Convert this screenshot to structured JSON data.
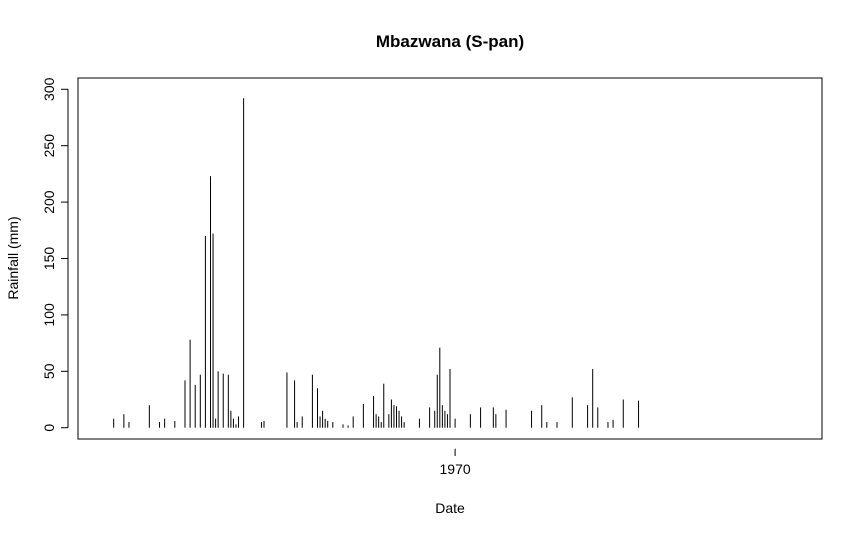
{
  "chart_data": {
    "type": "line",
    "title": "Mbazwana (S-pan)",
    "xlabel": "Date",
    "ylabel": "Rainfall (mm)",
    "ylim": [
      -10,
      310
    ],
    "y_ticks": [
      0,
      50,
      100,
      150,
      200,
      250,
      300
    ],
    "x_ticks": [
      {
        "value": 1970,
        "label": "1970"
      }
    ],
    "xlim": [
      1962.6,
      1977.2
    ],
    "grid": false,
    "legend": "none",
    "line_color": "#000000",
    "series": [
      {
        "x": [
          1963.3,
          1963.5,
          1963.6,
          1964.0,
          1964.2,
          1964.3,
          1964.5,
          1964.7,
          1964.8,
          1964.9,
          1965.0,
          1965.1,
          1965.2,
          1965.25,
          1965.3,
          1965.35,
          1965.45,
          1965.55,
          1965.6,
          1965.65,
          1965.7,
          1965.75,
          1965.85,
          1966.2,
          1966.25,
          1966.7,
          1966.85,
          1966.9,
          1967.0,
          1967.2,
          1967.3,
          1967.35,
          1967.4,
          1967.45,
          1967.5,
          1967.6,
          1967.8,
          1967.9,
          1968.0,
          1968.2,
          1968.4,
          1968.45,
          1968.5,
          1968.55,
          1968.6,
          1968.7,
          1968.75,
          1968.8,
          1968.85,
          1968.9,
          1968.95,
          1969.0,
          1969.3,
          1969.5,
          1969.6,
          1969.65,
          1969.7,
          1969.75,
          1969.8,
          1969.85,
          1969.9,
          1970.0,
          1970.3,
          1970.5,
          1970.75,
          1970.8,
          1971.0,
          1971.5,
          1971.7,
          1971.8,
          1972.0,
          1972.3,
          1972.6,
          1972.7,
          1972.8,
          1973.0,
          1973.1,
          1973.3,
          1973.6
        ],
        "y": [
          8,
          12,
          5,
          20,
          5,
          8,
          6,
          42,
          78,
          38,
          47,
          170,
          223,
          172,
          8,
          50,
          48,
          47,
          15,
          8,
          3,
          10,
          292,
          5,
          6,
          49,
          42,
          5,
          10,
          47,
          35,
          10,
          15,
          8,
          6,
          5,
          3,
          2,
          10,
          21,
          28,
          12,
          10,
          5,
          39,
          12,
          25,
          20,
          19,
          15,
          10,
          5,
          8,
          18,
          15,
          47,
          71,
          20,
          15,
          12,
          52,
          8,
          12,
          18,
          18,
          12,
          16,
          15,
          20,
          5,
          5,
          27,
          20,
          52,
          18,
          5,
          7,
          25,
          24
        ]
      }
    ]
  }
}
